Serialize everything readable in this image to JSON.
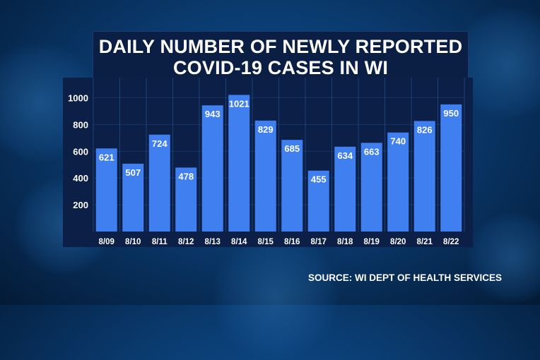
{
  "title": {
    "line1": "DAILY NUMBER OF NEWLY REPORTED",
    "line2": "COVID-19 CASES IN WI"
  },
  "source": "SOURCE: WI DEPT OF HEALTH SERVICES",
  "colors": {
    "bar": "#3f7ff0",
    "panel": "#0c1f47",
    "grid": "#2a5fa6",
    "text": "#ffffff"
  },
  "chart_data": {
    "type": "bar",
    "title": "DAILY NUMBER OF NEWLY REPORTED COVID-19 CASES IN WI",
    "xlabel": "",
    "ylabel": "",
    "categories": [
      "8/09",
      "8/10",
      "8/11",
      "8/12",
      "8/13",
      "8/14",
      "8/15",
      "8/16",
      "8/17",
      "8/18",
      "8/19",
      "8/20",
      "8/21",
      "8/22"
    ],
    "values": [
      621,
      507,
      724,
      478,
      943,
      1021,
      829,
      685,
      455,
      634,
      663,
      740,
      826,
      950
    ],
    "y_ticks": [
      "200",
      "400",
      "600",
      "800",
      "1000"
    ],
    "ylim": [
      0,
      1150
    ],
    "grid": true,
    "legend": "none"
  }
}
